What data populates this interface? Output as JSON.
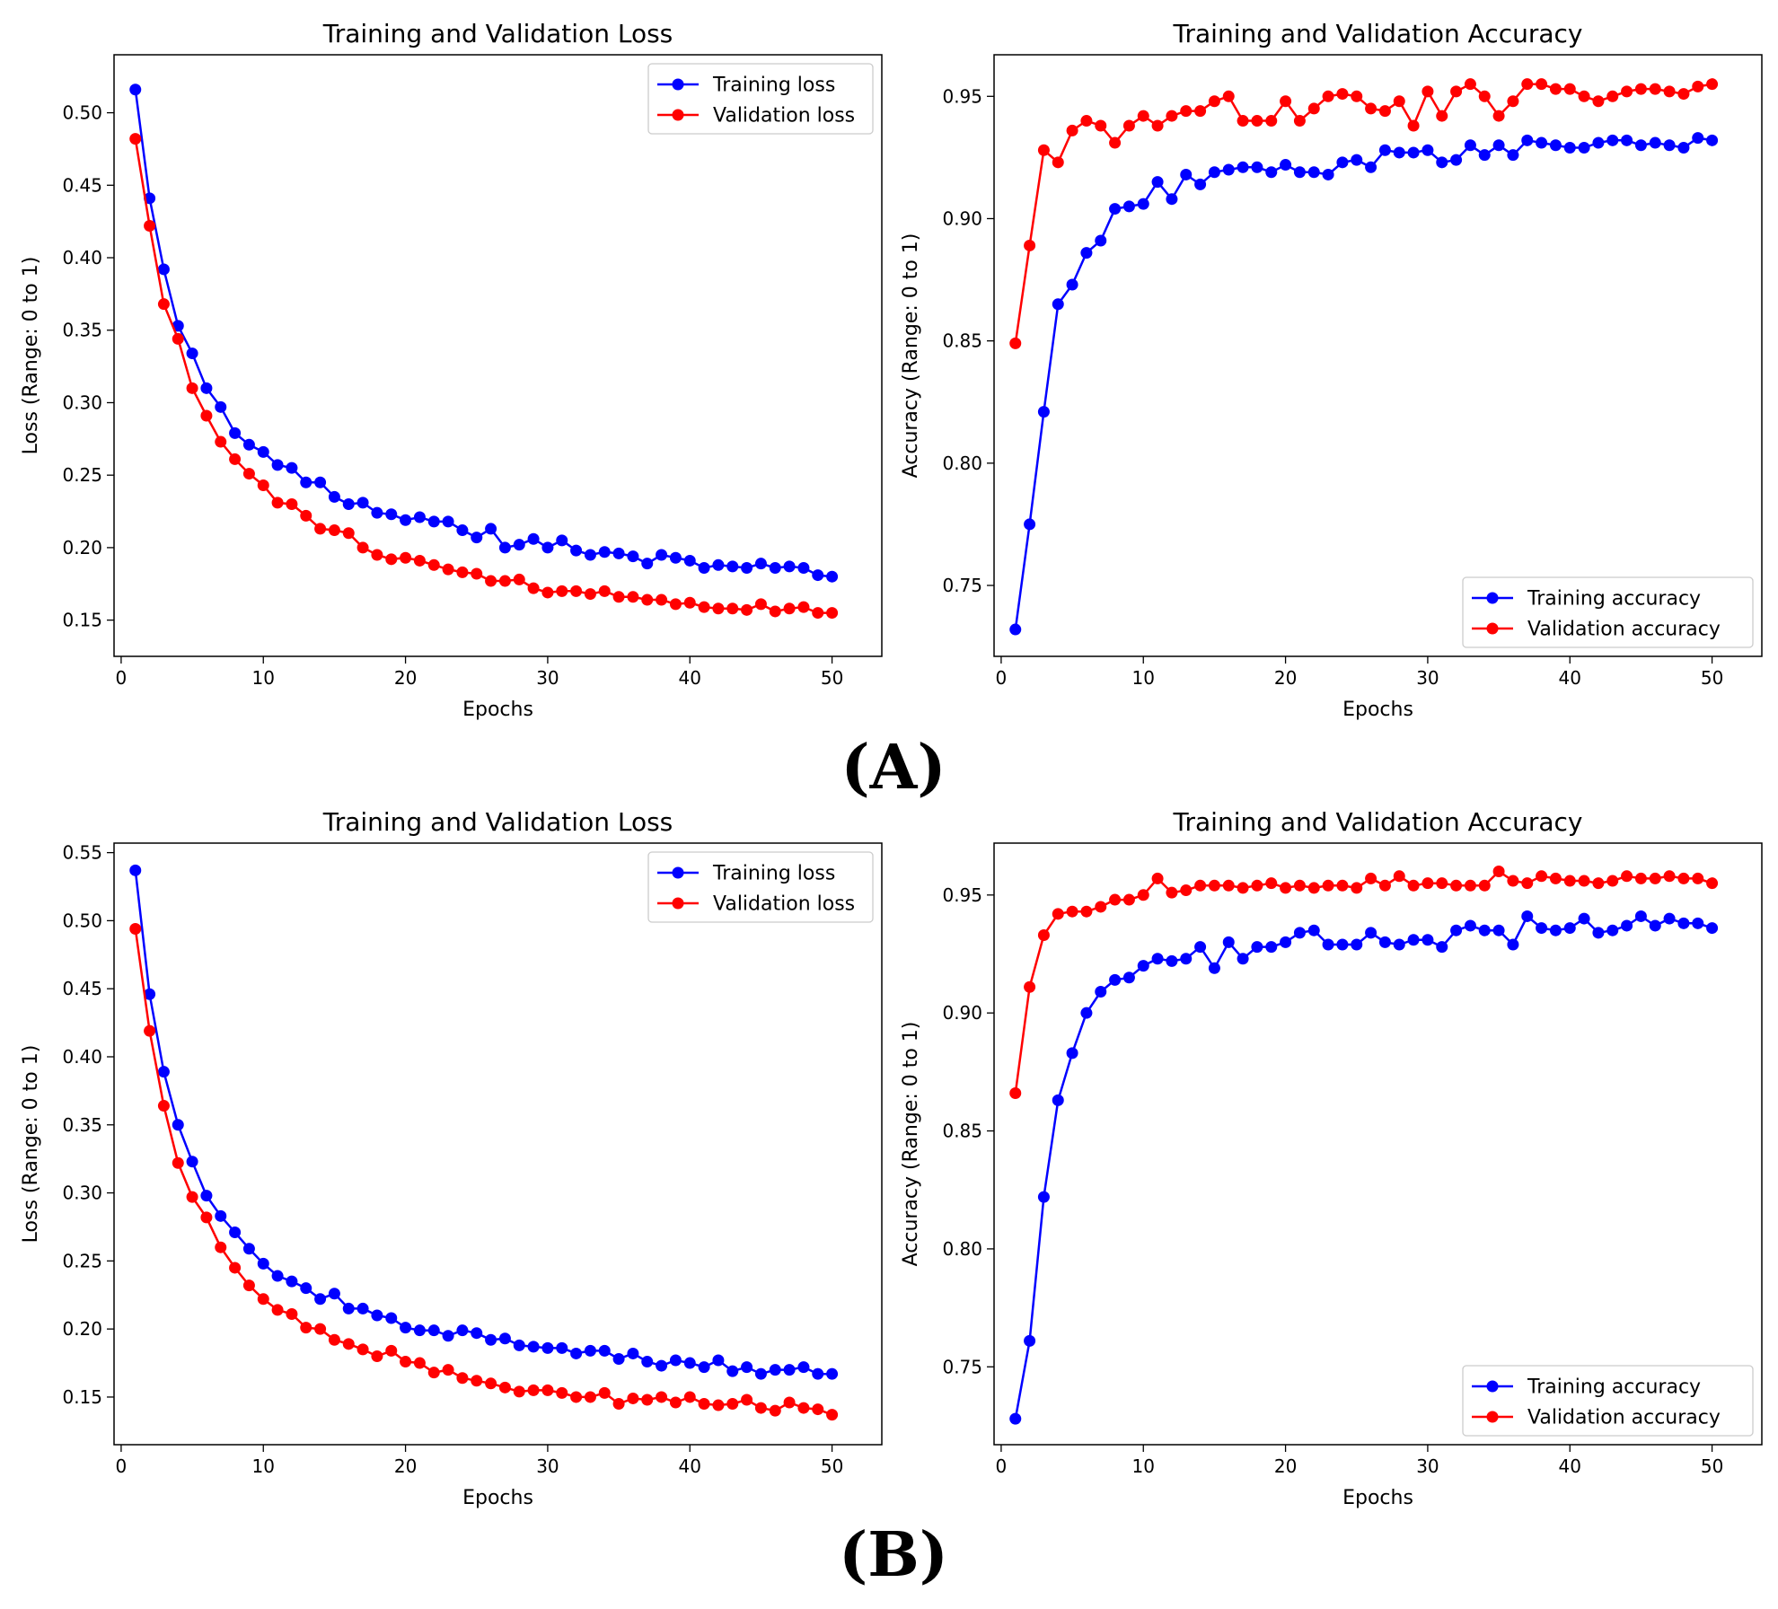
{
  "figure": {
    "panel_labels": [
      "(A)",
      "(B)"
    ]
  },
  "colors": {
    "training": "#0000ff",
    "validation": "#ff0000",
    "axes": "#000000",
    "background": "#ffffff"
  },
  "chart_data": [
    {
      "id": "A-loss",
      "panel": "(A)",
      "type": "line",
      "title": "Training and Validation Loss",
      "xlabel": "Epochs",
      "ylabel": "Loss (Range: 0 to 1)",
      "xlim": [
        -0.5,
        53.5
      ],
      "ylim": [
        0.125,
        0.54
      ],
      "xticks": [
        0,
        10,
        20,
        30,
        40,
        50
      ],
      "yticks": [
        0.15,
        0.2,
        0.25,
        0.3,
        0.35,
        0.4,
        0.45,
        0.5
      ],
      "ytick_decimals": 2,
      "legend_position": "top-right",
      "grid": false,
      "x": [
        1,
        2,
        3,
        4,
        5,
        6,
        7,
        8,
        9,
        10,
        11,
        12,
        13,
        14,
        15,
        16,
        17,
        18,
        19,
        20,
        21,
        22,
        23,
        24,
        25,
        26,
        27,
        28,
        29,
        30,
        31,
        32,
        33,
        34,
        35,
        36,
        37,
        38,
        39,
        40,
        41,
        42,
        43,
        44,
        45,
        46,
        47,
        48,
        49,
        50
      ],
      "series": [
        {
          "name": "Training loss",
          "color": "#0000ff",
          "values": [
            0.516,
            0.441,
            0.392,
            0.353,
            0.334,
            0.31,
            0.297,
            0.279,
            0.271,
            0.266,
            0.257,
            0.255,
            0.245,
            0.245,
            0.235,
            0.23,
            0.231,
            0.224,
            0.223,
            0.219,
            0.221,
            0.218,
            0.218,
            0.212,
            0.207,
            0.213,
            0.2,
            0.202,
            0.206,
            0.2,
            0.205,
            0.198,
            0.195,
            0.197,
            0.196,
            0.194,
            0.189,
            0.195,
            0.193,
            0.191,
            0.186,
            0.188,
            0.187,
            0.186,
            0.189,
            0.186,
            0.187,
            0.186,
            0.181,
            0.18
          ]
        },
        {
          "name": "Validation loss",
          "color": "#ff0000",
          "values": [
            0.482,
            0.422,
            0.368,
            0.344,
            0.31,
            0.291,
            0.273,
            0.261,
            0.251,
            0.243,
            0.231,
            0.23,
            0.222,
            0.213,
            0.212,
            0.21,
            0.2,
            0.195,
            0.192,
            0.193,
            0.191,
            0.188,
            0.185,
            0.183,
            0.182,
            0.177,
            0.177,
            0.178,
            0.172,
            0.169,
            0.17,
            0.17,
            0.168,
            0.17,
            0.166,
            0.166,
            0.164,
            0.164,
            0.161,
            0.162,
            0.159,
            0.158,
            0.158,
            0.157,
            0.161,
            0.156,
            0.158,
            0.159,
            0.155,
            0.155
          ]
        }
      ]
    },
    {
      "id": "A-acc",
      "panel": "(A)",
      "type": "line",
      "title": "Training and Validation Accuracy",
      "xlabel": "Epochs",
      "ylabel": "Accuracy (Range: 0 to 1)",
      "xlim": [
        -0.5,
        53.5
      ],
      "ylim": [
        0.721,
        0.967
      ],
      "xticks": [
        0,
        10,
        20,
        30,
        40,
        50
      ],
      "yticks": [
        0.75,
        0.8,
        0.85,
        0.9,
        0.95
      ],
      "ytick_decimals": 2,
      "legend_position": "bottom-right",
      "grid": false,
      "x": [
        1,
        2,
        3,
        4,
        5,
        6,
        7,
        8,
        9,
        10,
        11,
        12,
        13,
        14,
        15,
        16,
        17,
        18,
        19,
        20,
        21,
        22,
        23,
        24,
        25,
        26,
        27,
        28,
        29,
        30,
        31,
        32,
        33,
        34,
        35,
        36,
        37,
        38,
        39,
        40,
        41,
        42,
        43,
        44,
        45,
        46,
        47,
        48,
        49,
        50
      ],
      "series": [
        {
          "name": "Training accuracy",
          "color": "#0000ff",
          "values": [
            0.732,
            0.775,
            0.821,
            0.865,
            0.873,
            0.886,
            0.891,
            0.904,
            0.905,
            0.906,
            0.915,
            0.908,
            0.918,
            0.914,
            0.919,
            0.92,
            0.921,
            0.921,
            0.919,
            0.922,
            0.919,
            0.919,
            0.918,
            0.923,
            0.924,
            0.921,
            0.928,
            0.927,
            0.927,
            0.928,
            0.923,
            0.924,
            0.93,
            0.926,
            0.93,
            0.926,
            0.932,
            0.931,
            0.93,
            0.929,
            0.929,
            0.931,
            0.932,
            0.932,
            0.93,
            0.931,
            0.93,
            0.929,
            0.933,
            0.932
          ]
        },
        {
          "name": "Validation accuracy",
          "color": "#ff0000",
          "values": [
            0.849,
            0.889,
            0.928,
            0.923,
            0.936,
            0.94,
            0.938,
            0.931,
            0.938,
            0.942,
            0.938,
            0.942,
            0.944,
            0.944,
            0.948,
            0.95,
            0.94,
            0.94,
            0.94,
            0.948,
            0.94,
            0.945,
            0.95,
            0.951,
            0.95,
            0.945,
            0.944,
            0.948,
            0.938,
            0.952,
            0.942,
            0.952,
            0.955,
            0.95,
            0.942,
            0.948,
            0.955,
            0.955,
            0.953,
            0.953,
            0.95,
            0.948,
            0.95,
            0.952,
            0.953,
            0.953,
            0.952,
            0.951,
            0.954,
            0.955
          ]
        }
      ]
    },
    {
      "id": "B-loss",
      "panel": "(B)",
      "type": "line",
      "title": "Training and Validation Loss",
      "xlabel": "Epochs",
      "ylabel": "Loss (Range: 0 to 1)",
      "xlim": [
        -0.5,
        53.5
      ],
      "ylim": [
        0.115,
        0.557
      ],
      "xticks": [
        0,
        10,
        20,
        30,
        40,
        50
      ],
      "yticks": [
        0.15,
        0.2,
        0.25,
        0.3,
        0.35,
        0.4,
        0.45,
        0.5,
        0.55
      ],
      "ytick_decimals": 2,
      "legend_position": "top-right",
      "grid": false,
      "x": [
        1,
        2,
        3,
        4,
        5,
        6,
        7,
        8,
        9,
        10,
        11,
        12,
        13,
        14,
        15,
        16,
        17,
        18,
        19,
        20,
        21,
        22,
        23,
        24,
        25,
        26,
        27,
        28,
        29,
        30,
        31,
        32,
        33,
        34,
        35,
        36,
        37,
        38,
        39,
        40,
        41,
        42,
        43,
        44,
        45,
        46,
        47,
        48,
        49,
        50
      ],
      "series": [
        {
          "name": "Training loss",
          "color": "#0000ff",
          "values": [
            0.537,
            0.446,
            0.389,
            0.35,
            0.323,
            0.298,
            0.283,
            0.271,
            0.259,
            0.248,
            0.239,
            0.235,
            0.23,
            0.222,
            0.226,
            0.215,
            0.215,
            0.21,
            0.208,
            0.201,
            0.199,
            0.199,
            0.195,
            0.199,
            0.197,
            0.192,
            0.193,
            0.188,
            0.187,
            0.186,
            0.186,
            0.182,
            0.184,
            0.184,
            0.178,
            0.182,
            0.176,
            0.173,
            0.177,
            0.175,
            0.172,
            0.177,
            0.169,
            0.172,
            0.167,
            0.17,
            0.17,
            0.172,
            0.167,
            0.167
          ]
        },
        {
          "name": "Validation loss",
          "color": "#ff0000",
          "values": [
            0.494,
            0.419,
            0.364,
            0.322,
            0.297,
            0.282,
            0.26,
            0.245,
            0.232,
            0.222,
            0.214,
            0.211,
            0.201,
            0.2,
            0.192,
            0.189,
            0.185,
            0.18,
            0.184,
            0.176,
            0.175,
            0.168,
            0.17,
            0.164,
            0.162,
            0.16,
            0.157,
            0.154,
            0.155,
            0.155,
            0.153,
            0.15,
            0.15,
            0.153,
            0.145,
            0.149,
            0.148,
            0.15,
            0.146,
            0.15,
            0.145,
            0.144,
            0.145,
            0.148,
            0.142,
            0.14,
            0.146,
            0.142,
            0.141,
            0.137
          ]
        }
      ]
    },
    {
      "id": "B-acc",
      "panel": "(B)",
      "type": "line",
      "title": "Training and Validation Accuracy",
      "xlabel": "Epochs",
      "ylabel": "Accuracy (Range: 0 to 1)",
      "xlim": [
        -0.5,
        53.5
      ],
      "ylim": [
        0.717,
        0.972
      ],
      "xticks": [
        0,
        10,
        20,
        30,
        40,
        50
      ],
      "yticks": [
        0.75,
        0.8,
        0.85,
        0.9,
        0.95
      ],
      "ytick_decimals": 2,
      "legend_position": "bottom-right",
      "grid": false,
      "x": [
        1,
        2,
        3,
        4,
        5,
        6,
        7,
        8,
        9,
        10,
        11,
        12,
        13,
        14,
        15,
        16,
        17,
        18,
        19,
        20,
        21,
        22,
        23,
        24,
        25,
        26,
        27,
        28,
        29,
        30,
        31,
        32,
        33,
        34,
        35,
        36,
        37,
        38,
        39,
        40,
        41,
        42,
        43,
        44,
        45,
        46,
        47,
        48,
        49,
        50
      ],
      "series": [
        {
          "name": "Training accuracy",
          "color": "#0000ff",
          "values": [
            0.728,
            0.761,
            0.822,
            0.863,
            0.883,
            0.9,
            0.909,
            0.914,
            0.915,
            0.92,
            0.923,
            0.922,
            0.923,
            0.928,
            0.919,
            0.93,
            0.923,
            0.928,
            0.928,
            0.93,
            0.934,
            0.935,
            0.929,
            0.929,
            0.929,
            0.934,
            0.93,
            0.929,
            0.931,
            0.931,
            0.928,
            0.935,
            0.937,
            0.935,
            0.935,
            0.929,
            0.941,
            0.936,
            0.935,
            0.936,
            0.94,
            0.934,
            0.935,
            0.937,
            0.941,
            0.937,
            0.94,
            0.938,
            0.938,
            0.936
          ]
        },
        {
          "name": "Validation accuracy",
          "color": "#ff0000",
          "values": [
            0.866,
            0.911,
            0.933,
            0.942,
            0.943,
            0.943,
            0.945,
            0.948,
            0.948,
            0.95,
            0.957,
            0.951,
            0.952,
            0.954,
            0.954,
            0.954,
            0.953,
            0.954,
            0.955,
            0.953,
            0.954,
            0.953,
            0.954,
            0.954,
            0.953,
            0.957,
            0.954,
            0.958,
            0.954,
            0.955,
            0.955,
            0.954,
            0.954,
            0.954,
            0.96,
            0.956,
            0.955,
            0.958,
            0.957,
            0.956,
            0.956,
            0.955,
            0.956,
            0.958,
            0.957,
            0.957,
            0.958,
            0.957,
            0.957,
            0.955
          ]
        }
      ]
    }
  ]
}
